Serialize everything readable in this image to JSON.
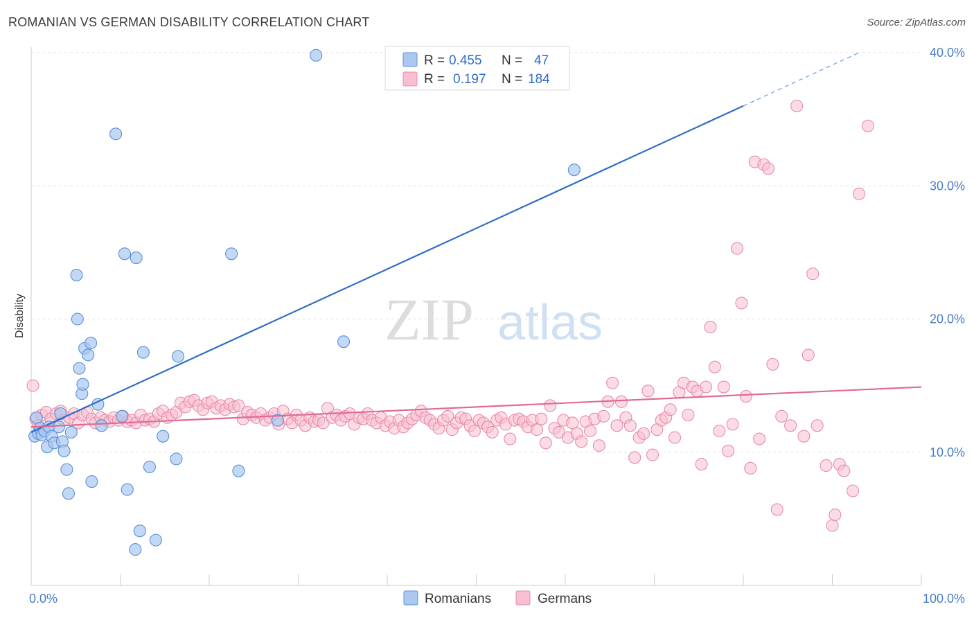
{
  "header": {
    "title": "ROMANIAN VS GERMAN DISABILITY CORRELATION CHART",
    "source": "Source: ZipAtlas.com"
  },
  "watermark": {
    "zip": "ZIP",
    "atlas": "atlas"
  },
  "legend_box": {
    "rows": [
      {
        "r_label": "R =",
        "r_value": "0.455",
        "n_label": "N =",
        "n_value": "47"
      },
      {
        "r_label": "R =",
        "r_value": "0.197",
        "n_label": "N =",
        "n_value": "184"
      }
    ]
  },
  "colors": {
    "romanians_fill": "#aac8f0",
    "romanians_stroke": "#5b8fd8",
    "romanians_line": "#2f6cc9",
    "germans_fill": "#f8bfd0",
    "germans_stroke": "#e98aa8",
    "germans_line": "#e06a94",
    "tick_color": "#4a7cc9"
  },
  "chart_data": {
    "type": "scatter",
    "title": "ROMANIAN VS GERMAN DISABILITY CORRELATION CHART",
    "xlabel": "",
    "ylabel": "Disability",
    "xlim": [
      0,
      100
    ],
    "ylim": [
      0,
      40
    ],
    "x_tick_labels": [
      "0.0%",
      "100.0%"
    ],
    "y_ticks": [
      10,
      20,
      30,
      40
    ],
    "y_tick_labels": [
      "10.0%",
      "20.0%",
      "30.0%",
      "40.0%"
    ],
    "grid": true,
    "legend_position": "bottom",
    "series": [
      {
        "name": "Romanians",
        "R": 0.455,
        "N": 47,
        "trend": {
          "x0": 0,
          "y0": 11.5,
          "x1": 80,
          "y1": 36.0,
          "dash_to_x": 93,
          "dash_to_y": 40.0
        },
        "points": [
          [
            0.4,
            11.2
          ],
          [
            0.6,
            12.6
          ],
          [
            0.8,
            11.4
          ],
          [
            1.0,
            11.8
          ],
          [
            1.2,
            11.3
          ],
          [
            1.5,
            11.6
          ],
          [
            1.8,
            10.4
          ],
          [
            2.0,
            11.9
          ],
          [
            2.3,
            11.2
          ],
          [
            2.6,
            10.7
          ],
          [
            3.1,
            11.9
          ],
          [
            3.3,
            12.9
          ],
          [
            3.5,
            10.8
          ],
          [
            3.7,
            10.1
          ],
          [
            4.0,
            8.7
          ],
          [
            4.2,
            6.9
          ],
          [
            4.5,
            11.5
          ],
          [
            5.1,
            23.3
          ],
          [
            5.2,
            20.0
          ],
          [
            5.4,
            16.3
          ],
          [
            5.7,
            14.4
          ],
          [
            5.8,
            15.1
          ],
          [
            6.0,
            17.8
          ],
          [
            6.4,
            17.3
          ],
          [
            6.7,
            18.2
          ],
          [
            6.8,
            7.8
          ],
          [
            7.5,
            13.6
          ],
          [
            7.9,
            12.0
          ],
          [
            9.5,
            33.9
          ],
          [
            10.2,
            12.7
          ],
          [
            10.5,
            24.9
          ],
          [
            10.8,
            7.2
          ],
          [
            11.7,
            2.7
          ],
          [
            11.8,
            24.6
          ],
          [
            12.2,
            4.1
          ],
          [
            12.6,
            17.5
          ],
          [
            13.3,
            8.9
          ],
          [
            14.0,
            3.4
          ],
          [
            14.8,
            11.2
          ],
          [
            16.3,
            9.5
          ],
          [
            16.5,
            17.2
          ],
          [
            22.5,
            24.9
          ],
          [
            23.3,
            8.6
          ],
          [
            27.7,
            12.4
          ],
          [
            32.0,
            39.8
          ],
          [
            35.1,
            18.3
          ],
          [
            61.0,
            31.2
          ]
        ]
      },
      {
        "name": "Germans",
        "R": 0.197,
        "N": 184,
        "trend": {
          "x0": 0,
          "y0": 11.9,
          "x1": 100,
          "y1": 14.9
        },
        "points": [
          [
            0.2,
            15.0
          ],
          [
            0.5,
            12.5
          ],
          [
            0.8,
            12.0
          ],
          [
            1.2,
            12.8
          ],
          [
            1.7,
            13.0
          ],
          [
            2.2,
            12.5
          ],
          [
            2.8,
            12.9
          ],
          [
            3.3,
            13.1
          ],
          [
            3.7,
            12.4
          ],
          [
            4.3,
            12.6
          ],
          [
            4.8,
            12.9
          ],
          [
            5.3,
            12.2
          ],
          [
            5.8,
            12.8
          ],
          [
            6.3,
            13.0
          ],
          [
            6.8,
            12.5
          ],
          [
            7.2,
            12.2
          ],
          [
            7.8,
            12.6
          ],
          [
            8.3,
            12.4
          ],
          [
            8.8,
            12.3
          ],
          [
            9.3,
            12.6
          ],
          [
            9.8,
            12.4
          ],
          [
            10.3,
            12.7
          ],
          [
            10.8,
            12.3
          ],
          [
            11.3,
            12.4
          ],
          [
            11.8,
            12.2
          ],
          [
            12.3,
            12.8
          ],
          [
            12.8,
            12.4
          ],
          [
            13.3,
            12.5
          ],
          [
            13.8,
            12.3
          ],
          [
            14.3,
            12.9
          ],
          [
            14.8,
            13.1
          ],
          [
            15.3,
            12.6
          ],
          [
            15.8,
            12.8
          ],
          [
            16.3,
            13.0
          ],
          [
            16.8,
            13.7
          ],
          [
            17.3,
            13.4
          ],
          [
            17.8,
            13.8
          ],
          [
            18.3,
            13.9
          ],
          [
            18.8,
            13.5
          ],
          [
            19.3,
            13.2
          ],
          [
            19.8,
            13.7
          ],
          [
            20.3,
            13.8
          ],
          [
            20.8,
            13.3
          ],
          [
            21.3,
            13.5
          ],
          [
            21.8,
            13.2
          ],
          [
            22.3,
            13.6
          ],
          [
            22.8,
            13.4
          ],
          [
            23.3,
            13.5
          ],
          [
            23.8,
            12.5
          ],
          [
            24.3,
            13.0
          ],
          [
            24.8,
            12.8
          ],
          [
            25.3,
            12.6
          ],
          [
            25.8,
            12.9
          ],
          [
            26.3,
            12.4
          ],
          [
            26.8,
            12.6
          ],
          [
            27.3,
            12.9
          ],
          [
            27.8,
            12.1
          ],
          [
            28.3,
            13.1
          ],
          [
            28.8,
            12.5
          ],
          [
            29.3,
            12.2
          ],
          [
            29.8,
            12.8
          ],
          [
            30.3,
            12.4
          ],
          [
            30.8,
            12.0
          ],
          [
            31.3,
            12.6
          ],
          [
            31.8,
            12.3
          ],
          [
            32.3,
            12.4
          ],
          [
            32.8,
            12.2
          ],
          [
            33.3,
            13.3
          ],
          [
            33.8,
            12.6
          ],
          [
            34.3,
            12.8
          ],
          [
            34.8,
            12.4
          ],
          [
            35.3,
            12.7
          ],
          [
            35.8,
            12.9
          ],
          [
            36.3,
            12.1
          ],
          [
            36.8,
            12.6
          ],
          [
            37.3,
            12.5
          ],
          [
            37.8,
            12.9
          ],
          [
            38.3,
            12.4
          ],
          [
            38.8,
            12.2
          ],
          [
            39.3,
            12.6
          ],
          [
            39.8,
            12.0
          ],
          [
            40.3,
            12.3
          ],
          [
            40.8,
            11.8
          ],
          [
            41.3,
            12.4
          ],
          [
            41.8,
            11.9
          ],
          [
            42.3,
            12.2
          ],
          [
            42.8,
            12.5
          ],
          [
            43.3,
            12.8
          ],
          [
            43.8,
            13.1
          ],
          [
            44.3,
            12.6
          ],
          [
            44.8,
            12.4
          ],
          [
            45.3,
            12.1
          ],
          [
            45.8,
            11.8
          ],
          [
            46.3,
            12.4
          ],
          [
            46.8,
            12.7
          ],
          [
            47.3,
            11.7
          ],
          [
            47.8,
            12.2
          ],
          [
            48.3,
            12.6
          ],
          [
            48.8,
            12.5
          ],
          [
            49.3,
            12.0
          ],
          [
            49.8,
            11.6
          ],
          [
            50.3,
            12.4
          ],
          [
            50.8,
            12.2
          ],
          [
            51.3,
            11.9
          ],
          [
            51.8,
            11.5
          ],
          [
            52.3,
            12.4
          ],
          [
            52.8,
            12.6
          ],
          [
            53.3,
            12.1
          ],
          [
            53.8,
            11.0
          ],
          [
            54.3,
            12.4
          ],
          [
            54.8,
            12.5
          ],
          [
            55.3,
            12.3
          ],
          [
            55.8,
            11.9
          ],
          [
            56.3,
            12.4
          ],
          [
            56.8,
            11.7
          ],
          [
            57.3,
            12.5
          ],
          [
            57.8,
            10.7
          ],
          [
            58.3,
            13.5
          ],
          [
            58.8,
            11.8
          ],
          [
            59.3,
            11.5
          ],
          [
            59.8,
            12.4
          ],
          [
            60.3,
            11.1
          ],
          [
            60.8,
            12.2
          ],
          [
            61.3,
            11.4
          ],
          [
            61.8,
            10.8
          ],
          [
            62.3,
            12.3
          ],
          [
            62.8,
            11.6
          ],
          [
            63.3,
            12.5
          ],
          [
            63.8,
            10.5
          ],
          [
            64.3,
            12.7
          ],
          [
            64.8,
            13.8
          ],
          [
            65.3,
            15.2
          ],
          [
            65.8,
            12.0
          ],
          [
            66.3,
            13.8
          ],
          [
            66.8,
            12.6
          ],
          [
            67.3,
            12.0
          ],
          [
            67.8,
            9.6
          ],
          [
            68.3,
            11.1
          ],
          [
            68.8,
            11.4
          ],
          [
            69.3,
            14.6
          ],
          [
            69.8,
            9.8
          ],
          [
            70.3,
            11.7
          ],
          [
            70.8,
            12.4
          ],
          [
            71.3,
            12.6
          ],
          [
            71.8,
            13.2
          ],
          [
            72.3,
            11.1
          ],
          [
            72.8,
            14.5
          ],
          [
            73.3,
            15.2
          ],
          [
            73.8,
            12.8
          ],
          [
            74.3,
            14.9
          ],
          [
            74.8,
            14.6
          ],
          [
            75.3,
            9.1
          ],
          [
            75.8,
            14.9
          ],
          [
            76.3,
            19.4
          ],
          [
            76.8,
            16.4
          ],
          [
            77.3,
            11.6
          ],
          [
            77.8,
            14.9
          ],
          [
            78.3,
            10.1
          ],
          [
            78.8,
            12.1
          ],
          [
            79.3,
            25.3
          ],
          [
            79.8,
            21.2
          ],
          [
            80.3,
            14.2
          ],
          [
            80.8,
            8.8
          ],
          [
            81.3,
            31.8
          ],
          [
            81.8,
            11.0
          ],
          [
            82.3,
            31.6
          ],
          [
            82.8,
            31.3
          ],
          [
            83.3,
            16.6
          ],
          [
            83.8,
            5.7
          ],
          [
            84.3,
            12.7
          ],
          [
            85.3,
            12.0
          ],
          [
            86.0,
            36.0
          ],
          [
            86.8,
            11.2
          ],
          [
            87.3,
            17.3
          ],
          [
            87.8,
            23.4
          ],
          [
            88.3,
            12.0
          ],
          [
            89.3,
            9.0
          ],
          [
            90.0,
            4.5
          ],
          [
            90.3,
            5.3
          ],
          [
            90.8,
            9.1
          ],
          [
            91.3,
            8.6
          ],
          [
            92.3,
            7.1
          ],
          [
            93.0,
            29.4
          ],
          [
            94.0,
            34.5
          ]
        ]
      }
    ]
  },
  "bottom_legend": {
    "items": [
      "Romanians",
      "Germans"
    ]
  }
}
